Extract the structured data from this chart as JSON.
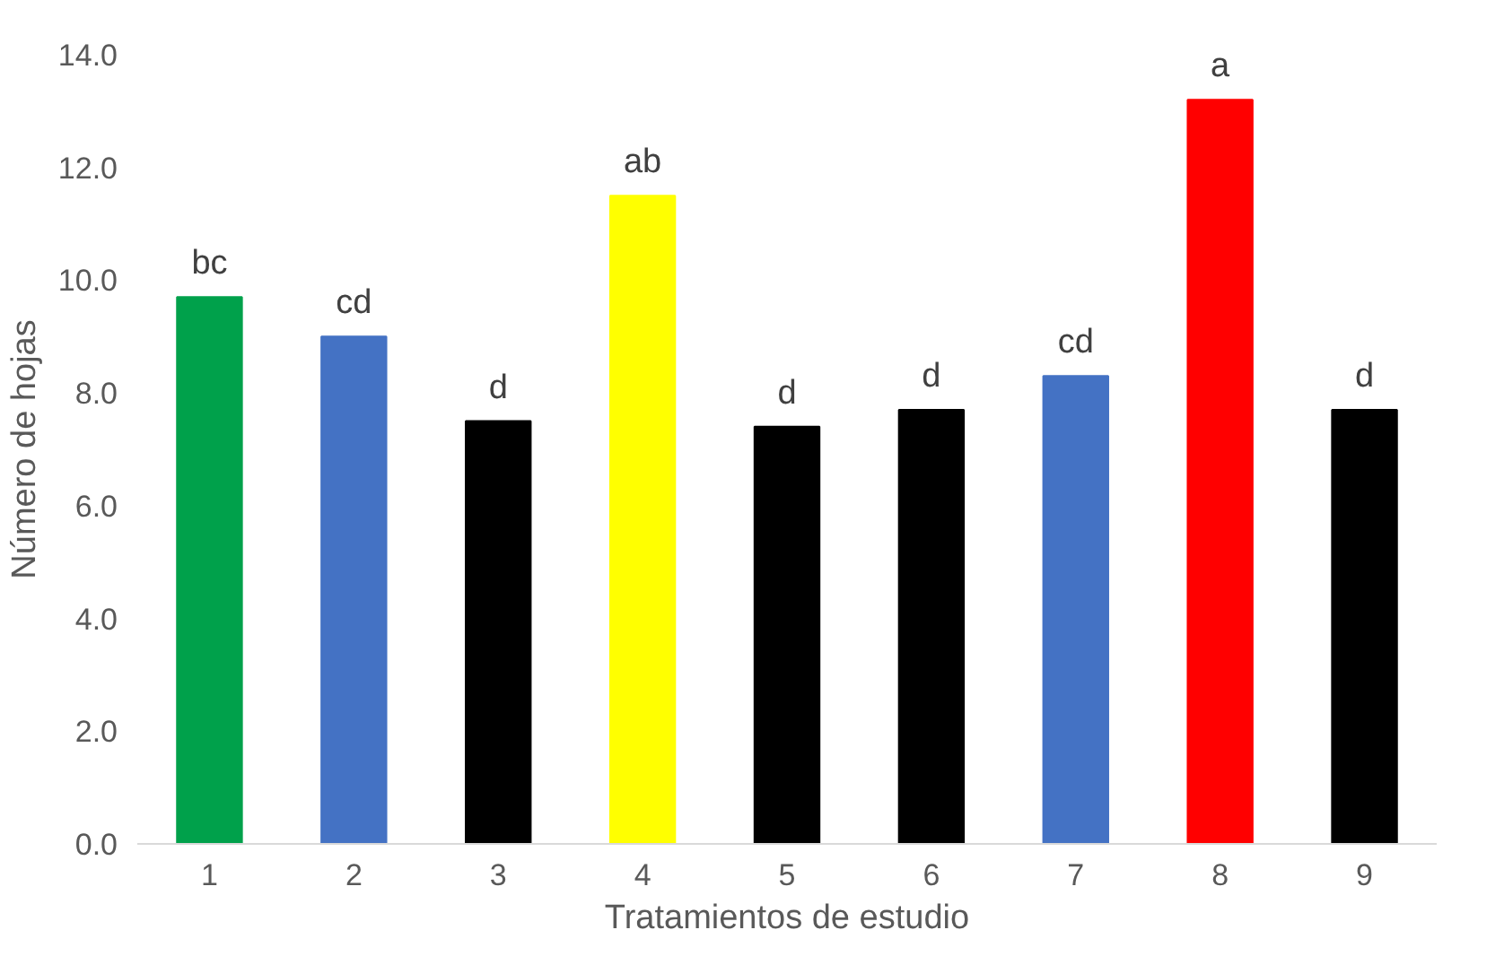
{
  "chart_data": {
    "type": "bar",
    "xlabel": "Tratamientos de estudio",
    "ylabel": "Número de hojas",
    "categories": [
      "1",
      "2",
      "3",
      "4",
      "5",
      "6",
      "7",
      "8",
      "9"
    ],
    "values": [
      9.7,
      9.0,
      7.5,
      11.5,
      7.4,
      7.7,
      8.3,
      13.2,
      7.7
    ],
    "colors": [
      "#00a14b",
      "#4472c4",
      "#000000",
      "#ffff00",
      "#000000",
      "#000000",
      "#4472c4",
      "#ff0000",
      "#000000"
    ],
    "ylim": [
      0,
      14
    ],
    "yticks": [
      {
        "value": 0,
        "label": "0.0"
      },
      {
        "value": 2,
        "label": "2.0"
      },
      {
        "value": 4,
        "label": "4.0"
      },
      {
        "value": 6,
        "label": "6.0"
      },
      {
        "value": 8,
        "label": "8.0"
      },
      {
        "value": 10,
        "label": "10.0"
      },
      {
        "value": 12,
        "label": "12.0"
      },
      {
        "value": 14,
        "label": "14.0"
      }
    ],
    "grid": false,
    "annotations": [
      {
        "text": "bc",
        "x": "1",
        "y": 9.7
      },
      {
        "text": "cd",
        "x": "2",
        "y": 9.0
      },
      {
        "text": "d",
        "x": "3",
        "y": 7.5
      },
      {
        "text": "ab",
        "x": "4",
        "y": 11.5
      },
      {
        "text": "d",
        "x": "5",
        "y": 7.4
      },
      {
        "text": "d",
        "x": "6",
        "y": 7.7
      },
      {
        "text": "cd",
        "x": "7",
        "y": 8.3
      },
      {
        "text": "a",
        "x": "8",
        "y": 13.2
      },
      {
        "text": "d",
        "x": "9",
        "y": 7.7
      }
    ]
  }
}
